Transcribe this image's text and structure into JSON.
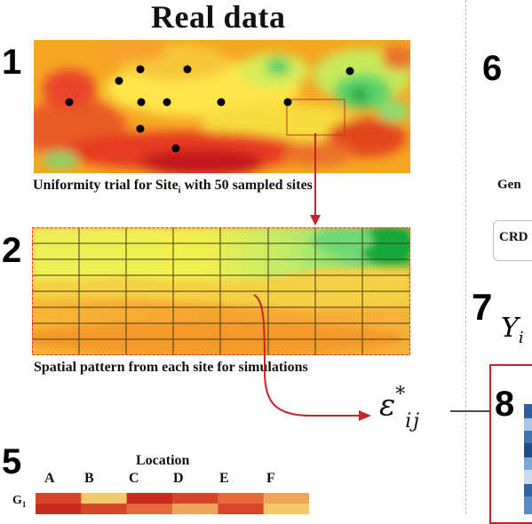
{
  "title": "Real data",
  "steps": {
    "s1": "1",
    "s2": "2",
    "s5": "5",
    "s6": "6",
    "s7": "7",
    "s8": "8"
  },
  "panel1": {
    "caption_pre": "Uniformity trial for Site",
    "caption_sub": "i",
    "caption_post": " with 50 sampled sites"
  },
  "panel2": {
    "caption": "Spatial pattern from each site for simulations"
  },
  "epsilon": {
    "symbol": "ε",
    "superscript": "*",
    "subscript": "ij"
  },
  "right_partial": {
    "gen_text": "Gen",
    "crd_text": "CRD",
    "y_symbol": "Y",
    "y_sub": "i"
  },
  "panel5": {
    "location_title": "Location",
    "locations": [
      "A",
      "B",
      "C",
      "D",
      "E",
      "F"
    ],
    "row_label": "G",
    "row_label_sub": "1",
    "cell_colors": [
      "#d9452b",
      "#f3c96a",
      "#c82a1e",
      "#d9452b",
      "#e86a3c",
      "#f0a55a"
    ]
  },
  "colors": {
    "accent_red": "#c0272d",
    "arrow_red": "#c0272d"
  }
}
